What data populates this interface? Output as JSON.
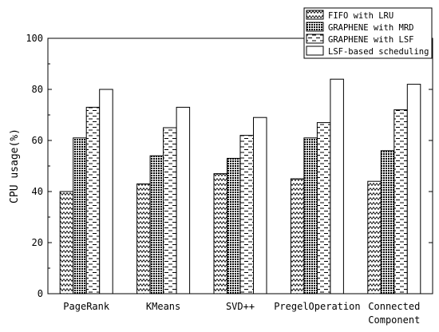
{
  "chart_data": {
    "type": "bar",
    "categories": [
      "PageRank",
      "KMeans",
      "SVD++",
      "PregelOperation",
      "Connected\nComponent"
    ],
    "series": [
      {
        "name": "FIFO with LRU",
        "pattern": "wave",
        "values": [
          40,
          43,
          47,
          45,
          44
        ]
      },
      {
        "name": "GRAPHENE with MRD",
        "pattern": "dots",
        "values": [
          61,
          54,
          53,
          61,
          56
        ]
      },
      {
        "name": "GRAPHENE with LSF",
        "pattern": "dashes",
        "values": [
          73,
          65,
          62,
          67,
          72
        ]
      },
      {
        "name": "LSF-based scheduling",
        "pattern": "none",
        "values": [
          80,
          73,
          69,
          84,
          82
        ]
      }
    ],
    "xlabel": "",
    "ylabel": "CPU usage(%)",
    "ylim": [
      0,
      100
    ],
    "yticks": [
      0,
      20,
      40,
      60,
      80,
      100
    ],
    "grid": false,
    "legend_position": "top-right"
  }
}
